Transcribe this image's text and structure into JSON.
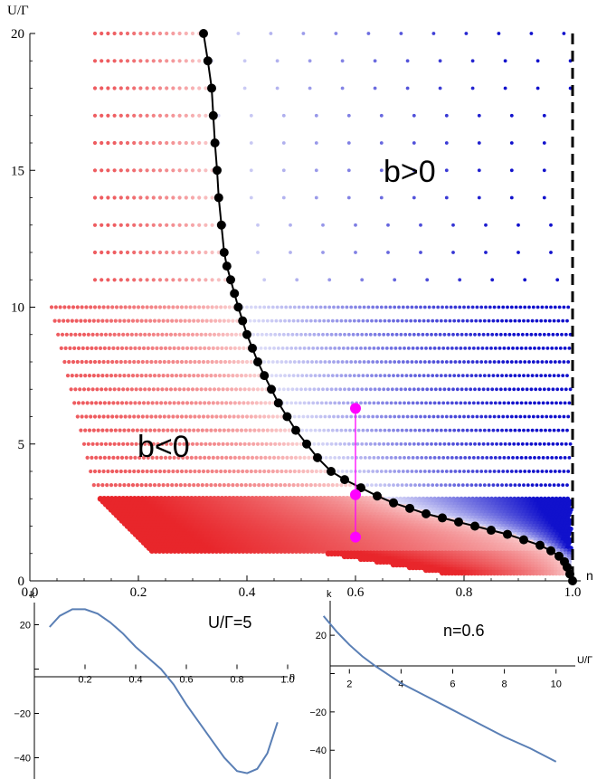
{
  "chart_data": [
    {
      "type": "scatter",
      "xlabel": "n",
      "ylabel": "U/Γ",
      "xlim": [
        0,
        1
      ],
      "ylim": [
        0,
        20
      ],
      "xticks": [
        "0.0",
        "0.2",
        "0.4",
        "0.6",
        "0.8",
        "1.0"
      ],
      "yticks": [
        "0",
        "5",
        "10",
        "15",
        "20"
      ],
      "annotations": [
        "b>0",
        "b<0"
      ],
      "colors": {
        "negative": "#e8262b",
        "positive": "#1111cc",
        "boundary": "#000000",
        "marker": "#ff00ff"
      },
      "boundary_curve": {
        "x": [
          0.32,
          0.328,
          0.335,
          0.338,
          0.341,
          0.345,
          0.348,
          0.353,
          0.358,
          0.363,
          0.37,
          0.377,
          0.384,
          0.392,
          0.4,
          0.41,
          0.42,
          0.432,
          0.445,
          0.458,
          0.474,
          0.49,
          0.51,
          0.53,
          0.555,
          0.58,
          0.61,
          0.64,
          0.67,
          0.7,
          0.73,
          0.76,
          0.79,
          0.82,
          0.85,
          0.88,
          0.91,
          0.94,
          0.96,
          0.975,
          0.985,
          0.99,
          0.995,
          1.0
        ],
        "y": [
          20,
          19,
          18,
          17,
          16,
          15,
          14,
          13,
          12,
          11.5,
          11,
          10.5,
          10,
          9.5,
          9,
          8.5,
          8,
          7.5,
          7,
          6.5,
          6,
          5.5,
          5,
          4.5,
          4,
          3.7,
          3.4,
          3.1,
          2.85,
          2.65,
          2.45,
          2.3,
          2.15,
          2.0,
          1.85,
          1.7,
          1.5,
          1.3,
          1.1,
          0.9,
          0.7,
          0.5,
          0.25,
          0.0
        ]
      },
      "marker_segment": {
        "x": 0.6,
        "y": [
          6.3,
          3.15,
          1.6
        ]
      },
      "phase_vertical_line": {
        "x": 1.0
      }
    },
    {
      "type": "line",
      "title": "U/Γ=5",
      "xlabel": "n",
      "ylabel": "k",
      "xlim": [
        0,
        1
      ],
      "ylim": [
        -50,
        30
      ],
      "xticks": [
        "0.2",
        "0.4",
        "0.6",
        "0.8",
        "1.0"
      ],
      "yticks": [
        "20",
        "0",
        "−20",
        "−40"
      ],
      "x": [
        0.06,
        0.1,
        0.15,
        0.2,
        0.25,
        0.3,
        0.35,
        0.4,
        0.45,
        0.5,
        0.55,
        0.6,
        0.65,
        0.7,
        0.75,
        0.8,
        0.84,
        0.88,
        0.92,
        0.96
      ],
      "y": [
        19,
        24,
        27,
        27,
        25,
        21,
        16,
        10,
        5,
        0,
        -7,
        -16,
        -24,
        -32,
        -40,
        -46,
        -47,
        -45,
        -38,
        -24
      ]
    },
    {
      "type": "line",
      "title": "n=0.6",
      "xlabel": "U/Γ",
      "ylabel": "k",
      "xlim": [
        0.8,
        10.5
      ],
      "ylim": [
        -55,
        38
      ],
      "xticks": [
        "2",
        "4",
        "6",
        "8",
        "10"
      ],
      "yticks": [
        "20",
        "0",
        "−20",
        "−40"
      ],
      "x": [
        1,
        1.5,
        2,
        2.5,
        3,
        3.5,
        4,
        5,
        6,
        7,
        8,
        9,
        10
      ],
      "y": [
        30,
        22,
        15,
        9,
        4,
        -0.5,
        -5,
        -12,
        -19,
        -26,
        -33,
        -39,
        -46
      ]
    }
  ]
}
